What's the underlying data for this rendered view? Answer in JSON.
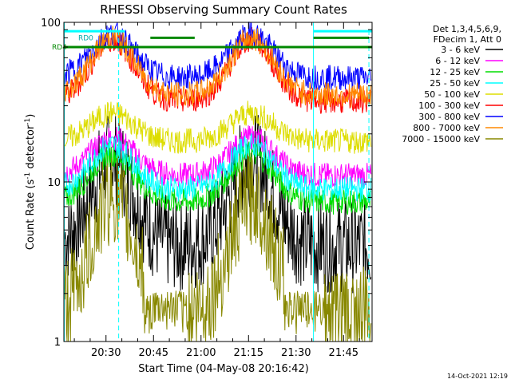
{
  "chart_data": {
    "type": "line",
    "title": "RHESSI Observing Summary Count Rates",
    "xlabel": "Start Time (04-May-08 20:16:42)",
    "ylabel_main": "Count Rate (s",
    "ylabel_sup1": "-1",
    "ylabel_mid": " detector",
    "ylabel_sup2": "-1",
    "ylabel_end": ")",
    "yscale": "log",
    "xlim": [
      "20:16:42",
      "21:54:00"
    ],
    "ylim": [
      1,
      100
    ],
    "x_ticks": [
      "20:30",
      "20:45",
      "21:00",
      "21:15",
      "21:30",
      "21:45"
    ],
    "y_ticks": [
      "1",
      "10",
      "100"
    ],
    "legend_header": [
      "Det 1,3,4,5,6,9,",
      "FDecim 1, Att 0"
    ],
    "legend_position": "right",
    "series": [
      {
        "name": "3 - 6 keV",
        "color": "#000000",
        "base": 4.0,
        "peak": 14.0
      },
      {
        "name": "6 - 12 keV",
        "color": "#ff00ff",
        "base": 11.0,
        "peak": 19.0
      },
      {
        "name": "12 - 25 keV",
        "color": "#00dd00",
        "base": 7.5,
        "peak": 15.0
      },
      {
        "name": "25 - 50 keV",
        "color": "#00ffff",
        "base": 9.0,
        "peak": 17.0
      },
      {
        "name": "50 - 100 keV",
        "color": "#dddd00",
        "base": 18.0,
        "peak": 27.0
      },
      {
        "name": "100 - 300 keV",
        "color": "#ff0000",
        "base": 32.0,
        "peak": 78.0
      },
      {
        "name": "300 - 800 keV",
        "color": "#0000ff",
        "base": 45.0,
        "peak": 85.0
      },
      {
        "name": "800 - 7000 keV",
        "color": "#ff8800",
        "base": 35.0,
        "peak": 80.0
      },
      {
        "name": "7000 - 15000 keV",
        "color": "#888800",
        "base": 1.5,
        "peak": 8.0
      }
    ],
    "flags": [
      {
        "label": "RD0",
        "color": "#00aaaa",
        "value": 80
      },
      {
        "label": "RD4",
        "color": "#008800",
        "value": 70
      }
    ],
    "saa_flag_color": "#008800",
    "night_marker_color": "#00ffff",
    "footer_date": "14-Oct-2021 12:19"
  }
}
